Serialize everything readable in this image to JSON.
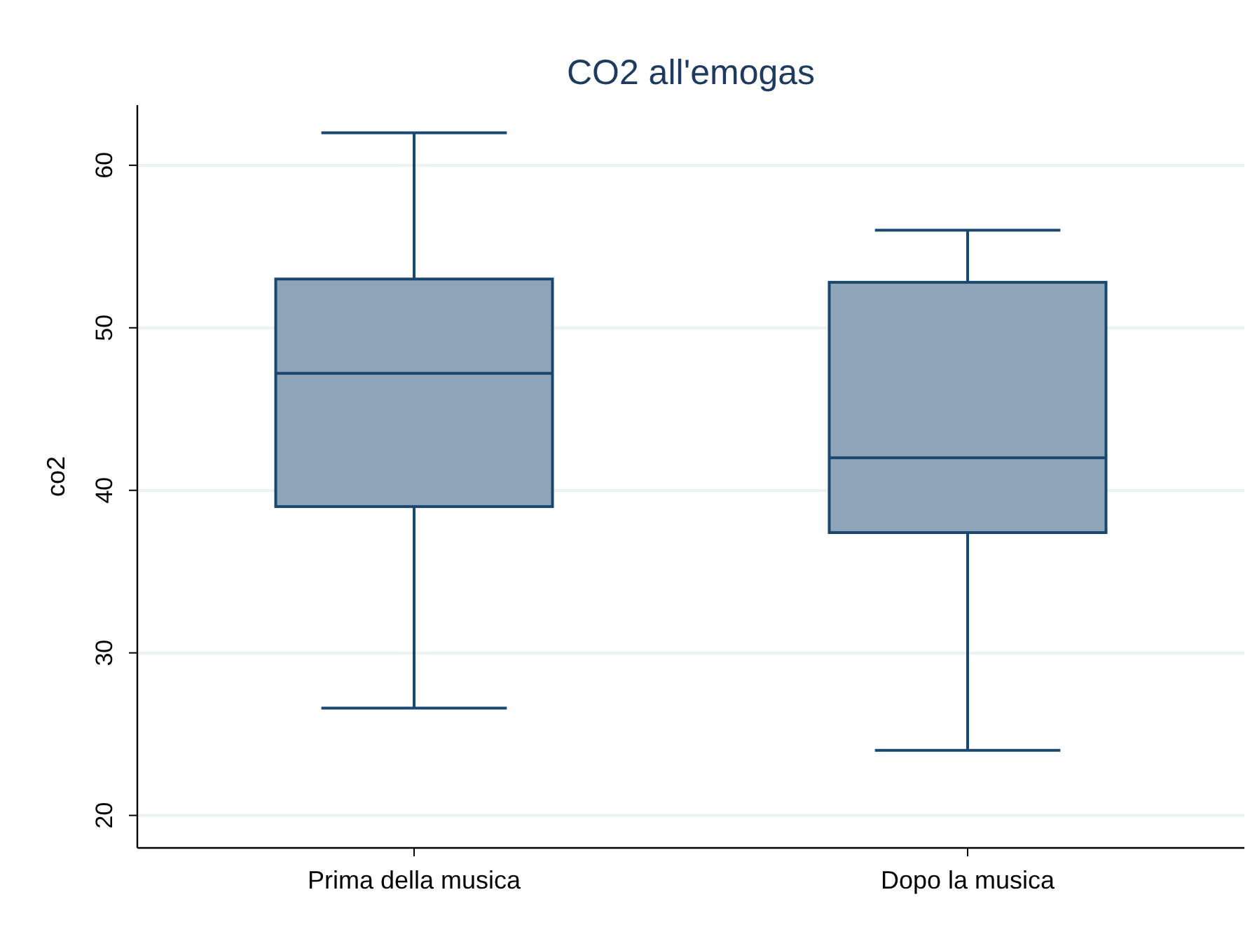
{
  "chart_data": {
    "type": "box",
    "title": "CO2 all'emogas",
    "ylabel": "co2",
    "categories": [
      "Prima della musica",
      "Dopo la musica"
    ],
    "color": "#8ea5b8",
    "boxes": [
      {
        "low": 26.6,
        "q1": 39,
        "median": 47.2,
        "q3": 53,
        "high": 62
      },
      {
        "low": 24,
        "q1": 37.4,
        "median": 42,
        "q3": 52.8,
        "high": 56
      }
    ],
    "ylim": [
      18,
      63.7
    ],
    "yticks": [
      20,
      30,
      40,
      50,
      60
    ],
    "grid": "y"
  }
}
